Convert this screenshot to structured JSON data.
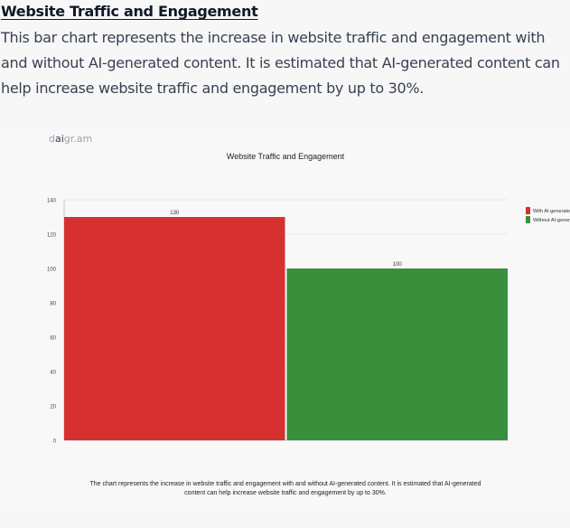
{
  "heading": "Website Traffic and Engagement",
  "intro": "This bar chart represents the increase in website traffic and engagement with and without AI-generated content. It is estimated that AI-generated content can help increase website traffic and engagement by up to 30%.",
  "brand": {
    "prefix": "d",
    "bold": "ai",
    "suffix": "gr.am"
  },
  "caption": "The chart represents the increase in website traffic and engagement with and without AI-generated content. It is estimated that AI-generated content can help increase website traffic and engagement by up to 30%.",
  "colors": {
    "with_ai": "#d63030",
    "without_ai": "#3a8f3c",
    "grid": "#e5e5e5",
    "axis": "#bbbbbb"
  },
  "chart_data": {
    "type": "bar",
    "title": "Website Traffic and Engagement",
    "xlabel": "",
    "ylabel": "",
    "ylim": [
      0,
      140
    ],
    "yticks": [
      0,
      20,
      40,
      60,
      80,
      100,
      120,
      140
    ],
    "grid": true,
    "legend_position": "right",
    "series": [
      {
        "name": "With AI-generated content",
        "value": 130,
        "color": "#d63030"
      },
      {
        "name": "Without AI-generated content",
        "value": 100,
        "color": "#3a8f3c"
      }
    ]
  }
}
